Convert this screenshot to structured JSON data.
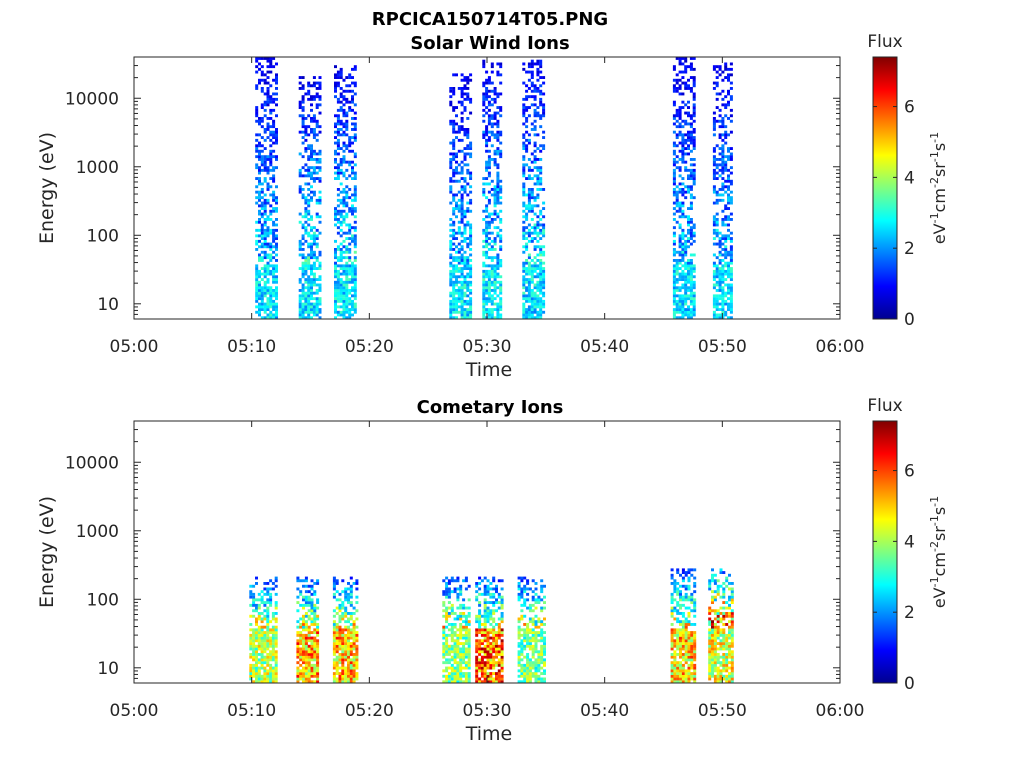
{
  "figure": {
    "title": "RPCICA150714T05.PNG"
  },
  "colorbar": {
    "label": "Flux",
    "units": "eV-1cm-2sr-1s-1",
    "ticks": [
      "0",
      "2",
      "4",
      "6"
    ],
    "range": [
      0,
      7.4
    ],
    "colormap": "jet"
  },
  "chart_data": [
    {
      "type": "heatmap",
      "title": "Solar Wind Ions",
      "xlabel": "Time",
      "ylabel": "Energy (eV)",
      "x_ticks": [
        "05:00",
        "05:10",
        "05:20",
        "05:30",
        "05:40",
        "05:50",
        "06:00"
      ],
      "x_range_minutes": [
        0,
        60
      ],
      "y_scale": "log",
      "y_ticks": [
        "10",
        "100",
        "1000",
        "10000"
      ],
      "y_range": [
        6,
        40000
      ],
      "z_label": "Flux",
      "bursts": [
        {
          "start_min": 10.3,
          "end_min": 12.3,
          "e_max": 38000,
          "low_peak": 3.3,
          "high_level": 0.8,
          "density": 0.55
        },
        {
          "start_min": 14.0,
          "end_min": 15.8,
          "e_max": 20000,
          "low_peak": 3.3,
          "high_level": 0.9,
          "density": 0.5
        },
        {
          "start_min": 17.0,
          "end_min": 19.0,
          "e_max": 28000,
          "low_peak": 3.3,
          "high_level": 0.9,
          "density": 0.55
        },
        {
          "start_min": 26.8,
          "end_min": 28.6,
          "e_max": 22000,
          "low_peak": 3.4,
          "high_level": 0.8,
          "density": 0.55
        },
        {
          "start_min": 29.6,
          "end_min": 31.4,
          "e_max": 35000,
          "low_peak": 3.4,
          "high_level": 0.9,
          "density": 0.55
        },
        {
          "start_min": 33.0,
          "end_min": 35.0,
          "e_max": 35000,
          "low_peak": 3.3,
          "high_level": 0.9,
          "density": 0.55
        },
        {
          "start_min": 45.8,
          "end_min": 47.8,
          "e_max": 38000,
          "low_peak": 3.3,
          "high_level": 0.8,
          "density": 0.55
        },
        {
          "start_min": 49.2,
          "end_min": 50.8,
          "e_max": 33000,
          "low_peak": 3.3,
          "high_level": 0.8,
          "density": 0.55
        }
      ]
    },
    {
      "type": "heatmap",
      "title": "Cometary Ions",
      "xlabel": "Time",
      "ylabel": "Energy (eV)",
      "x_ticks": [
        "05:00",
        "05:10",
        "05:20",
        "05:30",
        "05:40",
        "05:50",
        "06:00"
      ],
      "x_range_minutes": [
        0,
        60
      ],
      "y_scale": "log",
      "y_ticks": [
        "10",
        "100",
        "1000",
        "10000"
      ],
      "y_range": [
        6,
        40000
      ],
      "z_label": "Flux",
      "bursts": [
        {
          "start_min": 9.8,
          "end_min": 12.3,
          "e_max": 200,
          "low_peak": 5.2,
          "high_level": 1.5,
          "density": 0.6
        },
        {
          "start_min": 13.8,
          "end_min": 15.8,
          "e_max": 210,
          "low_peak": 6.6,
          "high_level": 1.5,
          "density": 0.6
        },
        {
          "start_min": 16.9,
          "end_min": 19.0,
          "e_max": 210,
          "low_peak": 6.4,
          "high_level": 1.5,
          "density": 0.6
        },
        {
          "start_min": 26.2,
          "end_min": 28.6,
          "e_max": 210,
          "low_peak": 4.8,
          "high_level": 1.5,
          "density": 0.55
        },
        {
          "start_min": 29.0,
          "end_min": 31.5,
          "e_max": 210,
          "low_peak": 7.2,
          "high_level": 1.5,
          "density": 0.6
        },
        {
          "start_min": 32.6,
          "end_min": 35.0,
          "e_max": 200,
          "low_peak": 4.6,
          "high_level": 1.5,
          "density": 0.55
        },
        {
          "start_min": 45.6,
          "end_min": 47.8,
          "e_max": 260,
          "low_peak": 6.3,
          "high_level": 1.5,
          "density": 0.6
        },
        {
          "start_min": 48.8,
          "end_min": 51.0,
          "e_max": 270,
          "low_peak": 5.6,
          "high_level": 2.0,
          "density": 0.6
        }
      ]
    }
  ]
}
